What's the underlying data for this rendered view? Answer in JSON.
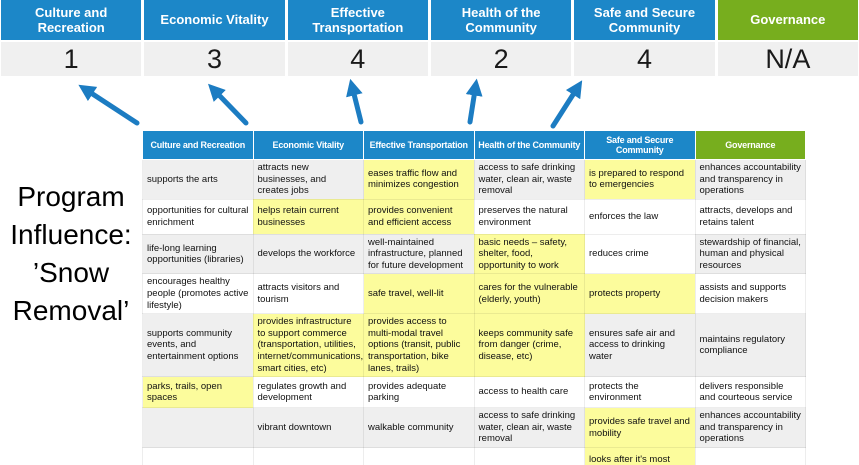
{
  "program": {
    "label": "Program\nInfluence:\n’Snow\nRemoval’"
  },
  "colors": {
    "header_blue": "#1C87C8",
    "governance_green": "#77AE1E",
    "highlight_yellow": "#FCFC9C",
    "stripe_gray": "#EFEFEF",
    "score_band_gray": "#F0F0F0",
    "arrow_blue": "#1C7CC2"
  },
  "summary": {
    "columns": [
      {
        "label": "Culture and Recreation",
        "score": "1",
        "accent": "blue"
      },
      {
        "label": "Economic Vitality",
        "score": "3",
        "accent": "blue"
      },
      {
        "label": "Effective Transportation",
        "score": "4",
        "accent": "blue"
      },
      {
        "label": "Health of the Community",
        "score": "2",
        "accent": "blue"
      },
      {
        "label": "Safe and Secure Community",
        "score": "4",
        "accent": "blue"
      },
      {
        "label": "Governance",
        "score": "N/A",
        "accent": "green"
      }
    ]
  },
  "matrix": {
    "headers": [
      {
        "label": "Culture and Recreation",
        "accent": "blue"
      },
      {
        "label": "Economic Vitality",
        "accent": "blue"
      },
      {
        "label": "Effective Transportation",
        "accent": "blue"
      },
      {
        "label": "Health of the Community",
        "accent": "blue"
      },
      {
        "label": "Safe and Secure Community",
        "accent": "blue"
      },
      {
        "label": "Governance",
        "accent": "green"
      }
    ],
    "rows": [
      [
        {
          "text": "supports the arts",
          "bg": "gray"
        },
        {
          "text": "attracts new businesses, and creates jobs",
          "bg": "gray"
        },
        {
          "text": "eases traffic flow and minimizes congestion",
          "bg": "yellow"
        },
        {
          "text": "access to safe drinking water, clean air, waste removal",
          "bg": "gray"
        },
        {
          "text": "is prepared to respond to emergencies",
          "bg": "yellow"
        },
        {
          "text": "enhances accountability and transparency in operations",
          "bg": "gray"
        }
      ],
      [
        {
          "text": "opportunities for cultural enrichment",
          "bg": "white"
        },
        {
          "text": "helps retain current businesses",
          "bg": "yellow"
        },
        {
          "text": "provides convenient and efficient access",
          "bg": "yellow"
        },
        {
          "text": "preserves the natural environment",
          "bg": "white"
        },
        {
          "text": "enforces the law",
          "bg": "white"
        },
        {
          "text": "attracts, develops and retains talent",
          "bg": "white"
        }
      ],
      [
        {
          "text": "life-long learning opportunities (libraries)",
          "bg": "gray"
        },
        {
          "text": "develops the workforce",
          "bg": "gray"
        },
        {
          "text": "well-maintained infrastructure, planned for future development",
          "bg": "gray"
        },
        {
          "text": "basic needs – safety, shelter, food, opportunity to work",
          "bg": "yellow"
        },
        {
          "text": "reduces crime",
          "bg": "white"
        },
        {
          "text": "stewardship of financial, human and physical resources",
          "bg": "gray"
        }
      ],
      [
        {
          "text": "encourages healthy people (promotes active lifestyle)",
          "bg": "white"
        },
        {
          "text": "attracts visitors and tourism",
          "bg": "white"
        },
        {
          "text": "safe travel, well-lit",
          "bg": "yellow"
        },
        {
          "text": "cares for the vulnerable (elderly, youth)",
          "bg": "yellow"
        },
        {
          "text": "protects property",
          "bg": "yellow"
        },
        {
          "text": "assists and supports decision makers",
          "bg": "white"
        }
      ],
      [
        {
          "text": "supports community events, and entertainment options",
          "bg": "gray"
        },
        {
          "text": "provides infrastructure to support commerce (transportation, utilities, internet/communications, smart cities, etc)",
          "bg": "yellow"
        },
        {
          "text": "provides access to multi-modal travel options (transit, public transportation, bike lanes, trails)",
          "bg": "yellow"
        },
        {
          "text": "keeps community safe from danger (crime, disease, etc)",
          "bg": "yellow"
        },
        {
          "text": "ensures safe air and access to drinking water",
          "bg": "gray"
        },
        {
          "text": "maintains regulatory compliance",
          "bg": "gray"
        }
      ],
      [
        {
          "text": "parks, trails, open spaces",
          "bg": "yellow"
        },
        {
          "text": "regulates growth and development",
          "bg": "white"
        },
        {
          "text": "provides adequate parking",
          "bg": "white"
        },
        {
          "text": "access to health care",
          "bg": "white"
        },
        {
          "text": "protects the environment",
          "bg": "white"
        },
        {
          "text": "delivers responsible and courteous service",
          "bg": "white"
        }
      ],
      [
        {
          "text": "",
          "bg": "gray"
        },
        {
          "text": "vibrant downtown",
          "bg": "gray"
        },
        {
          "text": "walkable community",
          "bg": "gray"
        },
        {
          "text": "access to safe drinking water, clean air, waste removal",
          "bg": "gray"
        },
        {
          "text": "provides safe travel and mobility",
          "bg": "yellow"
        },
        {
          "text": "enhances accountability and transparency in operations",
          "bg": "gray"
        }
      ],
      [
        {
          "text": "",
          "bg": "white"
        },
        {
          "text": "",
          "bg": "white"
        },
        {
          "text": "",
          "bg": "white"
        },
        {
          "text": "",
          "bg": "white"
        },
        {
          "text": "looks after it's most vulnerable",
          "bg": "yellow"
        },
        {
          "text": "",
          "bg": "white"
        }
      ]
    ]
  }
}
